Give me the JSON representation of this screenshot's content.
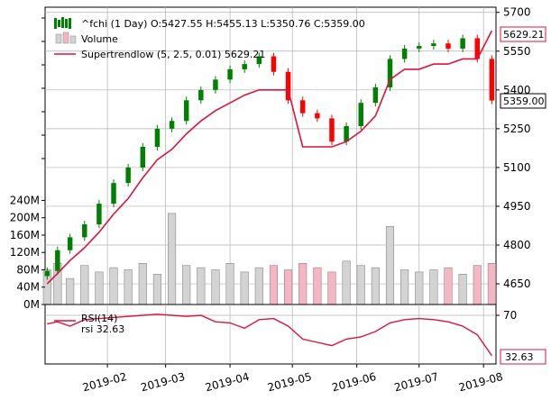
{
  "chart_data": {
    "type": "candlestick",
    "title": "",
    "xlabel": "",
    "ylabel": "",
    "dates": [
      "2019-01-03",
      "2019-01-08",
      "2019-01-14",
      "2019-01-21",
      "2019-01-28",
      "2019-02-04",
      "2019-02-11",
      "2019-02-18",
      "2019-02-25",
      "2019-03-04",
      "2019-03-11",
      "2019-03-18",
      "2019-03-25",
      "2019-04-01",
      "2019-04-08",
      "2019-04-15",
      "2019-04-22",
      "2019-04-29",
      "2019-05-06",
      "2019-05-13",
      "2019-05-20",
      "2019-05-27",
      "2019-06-03",
      "2019-06-10",
      "2019-06-17",
      "2019-06-24",
      "2019-07-01",
      "2019-07-08",
      "2019-07-15",
      "2019-07-22",
      "2019-07-29",
      "2019-08-05"
    ],
    "close": [
      4700,
      4780,
      4830,
      4880,
      4960,
      5040,
      5100,
      5180,
      5250,
      5280,
      5360,
      5400,
      5440,
      5480,
      5500,
      5530,
      5470,
      5360,
      5310,
      5290,
      5200,
      5260,
      5350,
      5410,
      5520,
      5560,
      5570,
      5580,
      5560,
      5600,
      5520,
      5359
    ],
    "volume_millions": [
      80,
      95,
      60,
      90,
      75,
      85,
      80,
      95,
      70,
      210,
      90,
      85,
      80,
      95,
      75,
      85,
      90,
      80,
      95,
      85,
      75,
      100,
      90,
      85,
      180,
      80,
      75,
      80,
      85,
      70,
      90,
      95
    ],
    "supertrend": [
      4650,
      4690,
      4740,
      4790,
      4850,
      4920,
      4980,
      5060,
      5130,
      5170,
      5230,
      5280,
      5320,
      5350,
      5380,
      5400,
      5400,
      5400,
      5180,
      5180,
      5180,
      5200,
      5240,
      5300,
      5440,
      5480,
      5480,
      5500,
      5500,
      5520,
      5520,
      5629.21
    ],
    "rsi": [
      62,
      64,
      60,
      66,
      67,
      68,
      69,
      70,
      71,
      70,
      69,
      70,
      64,
      63,
      58,
      66,
      67,
      60,
      48,
      45,
      42,
      48,
      50,
      55,
      63,
      66,
      67,
      66,
      64,
      60,
      52,
      32.63
    ],
    "legend": {
      "price": "^fchi (1 Day) O:5427.55 H:5455.13 L:5350.76 C:5359.00",
      "volume": "Volume",
      "supertrend": "Supertrendlow (5, 2.5, 0.01) 5629.21",
      "rsi_title": "RSI(14)",
      "rsi_value": "rsi 32.63"
    },
    "price_axis": {
      "ticks": [
        "5700",
        "5550",
        "5400",
        "5250",
        "5100",
        "4950",
        "4800",
        "4650"
      ],
      "ylim": [
        4570,
        5720
      ]
    },
    "volume_axis": {
      "ticks": [
        "240M",
        "200M",
        "160M",
        "120M",
        "80M",
        "40M",
        "0M"
      ],
      "ylim": [
        0,
        270
      ]
    },
    "rsi_axis": {
      "ticks": [
        "70"
      ],
      "ylim": [
        25,
        80
      ]
    },
    "x_ticks": [
      "2019-02",
      "2019-03",
      "2019-04",
      "2019-05",
      "2019-06",
      "2019-07",
      "2019-08"
    ],
    "badges": {
      "supertrend": "5629.21",
      "close": "5359.00",
      "rsi": "32.63"
    },
    "colors": {
      "up": "#008000",
      "down": "#ff0000",
      "supertrend": "#dc143c",
      "rsi": "#dc143c",
      "volume_up": "#d3d3d3",
      "volume_down": "#f4b6c2",
      "grid": "#b0b0b0"
    },
    "grid": true,
    "legend_position": "top-left"
  }
}
